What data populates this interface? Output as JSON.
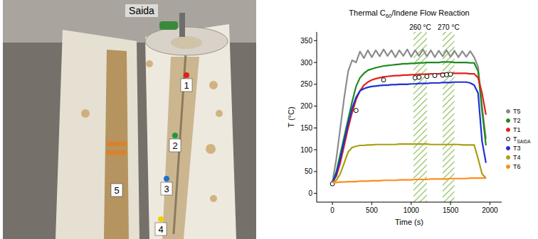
{
  "photo": {
    "saida": "Saida",
    "points": [
      "1",
      "2",
      "3",
      "4",
      "5"
    ]
  },
  "chart_data": {
    "type": "line",
    "title": "Thermal C60/Indene Flow Reaction",
    "x_label": "Time (s)",
    "y_label": "T (°C)",
    "xlim": [
      -200,
      2150
    ],
    "xticks": [
      0,
      500,
      1000,
      1500,
      2000
    ],
    "ylim": [
      -20,
      370
    ],
    "yticks": [
      0,
      50,
      100,
      150,
      200,
      250,
      300,
      350
    ],
    "grid": false,
    "legend": "right",
    "bands": [
      {
        "label": "260 °C",
        "x0": 1030,
        "x1": 1200
      },
      {
        "label": "270 °C",
        "x0": 1400,
        "x1": 1550
      }
    ],
    "x": [
      0,
      50,
      100,
      150,
      200,
      250,
      300,
      350,
      400,
      450,
      500,
      550,
      600,
      650,
      700,
      750,
      800,
      850,
      900,
      950,
      1000,
      1050,
      1100,
      1150,
      1200,
      1250,
      1300,
      1350,
      1400,
      1450,
      1500,
      1550,
      1600,
      1650,
      1700,
      1750,
      1800,
      1850,
      1900,
      1950
    ],
    "series": [
      {
        "name": "T5",
        "color": "#8c8c8c",
        "type": "line",
        "values": [
          25,
          80,
          150,
          220,
          280,
          305,
          300,
          325,
          310,
          328,
          312,
          328,
          314,
          330,
          315,
          328,
          312,
          328,
          315,
          330,
          313,
          328,
          315,
          330,
          314,
          328,
          312,
          327,
          314,
          328,
          313,
          327,
          312,
          326,
          313,
          326,
          312,
          290,
          200,
          125
        ]
      },
      {
        "name": "T2",
        "color": "#1e8a1e",
        "type": "line",
        "values": [
          25,
          50,
          90,
          130,
          170,
          210,
          245,
          265,
          275,
          282,
          285,
          288,
          290,
          292,
          293,
          294,
          295,
          296,
          297,
          297,
          298,
          298,
          299,
          299,
          300,
          300,
          300,
          300,
          301,
          301,
          301,
          300,
          300,
          300,
          300,
          299,
          299,
          280,
          190,
          110
        ]
      },
      {
        "name": "T1",
        "color": "#e3201b",
        "type": "line",
        "values": [
          25,
          40,
          70,
          110,
          150,
          185,
          215,
          235,
          248,
          255,
          260,
          263,
          265,
          267,
          268,
          269,
          270,
          270,
          271,
          271,
          272,
          272,
          273,
          273,
          273,
          274,
          274,
          274,
          275,
          275,
          275,
          275,
          275,
          275,
          275,
          274,
          274,
          265,
          230,
          180
        ]
      },
      {
        "name": "TSAIDA",
        "color": "#000000",
        "type": "scatter",
        "marker": "circle-open",
        "values": [
          22,
          null,
          null,
          null,
          null,
          null,
          190,
          null,
          null,
          null,
          null,
          null,
          null,
          260,
          null,
          null,
          null,
          null,
          null,
          null,
          null,
          265,
          266,
          null,
          268,
          null,
          270,
          null,
          271,
          272,
          273,
          null,
          null,
          null,
          null,
          null,
          null,
          null,
          null,
          null
        ]
      },
      {
        "name": "T3",
        "color": "#1f30d6",
        "type": "line",
        "values": [
          25,
          45,
          80,
          120,
          160,
          195,
          220,
          235,
          240,
          243,
          245,
          246,
          247,
          248,
          248,
          249,
          249,
          250,
          250,
          250,
          251,
          251,
          252,
          252,
          252,
          253,
          253,
          253,
          254,
          254,
          254,
          255,
          255,
          255,
          255,
          253,
          248,
          230,
          120,
          70
        ]
      },
      {
        "name": "T4",
        "color": "#a8a010",
        "type": "line",
        "values": [
          25,
          30,
          45,
          70,
          95,
          105,
          108,
          110,
          110,
          111,
          111,
          112,
          112,
          112,
          112,
          112,
          112,
          113,
          113,
          113,
          113,
          113,
          113,
          113,
          113,
          112,
          112,
          112,
          112,
          112,
          112,
          112,
          112,
          111,
          111,
          111,
          111,
          80,
          45,
          35
        ]
      },
      {
        "name": "T6",
        "color": "#ff8c1a",
        "type": "line",
        "values": [
          25,
          25,
          26,
          26,
          27,
          27,
          27,
          28,
          28,
          28,
          29,
          29,
          29,
          30,
          30,
          30,
          30,
          31,
          31,
          31,
          31,
          32,
          32,
          32,
          32,
          33,
          33,
          33,
          33,
          33,
          34,
          34,
          34,
          34,
          34,
          35,
          35,
          35,
          35,
          35
        ]
      }
    ]
  }
}
